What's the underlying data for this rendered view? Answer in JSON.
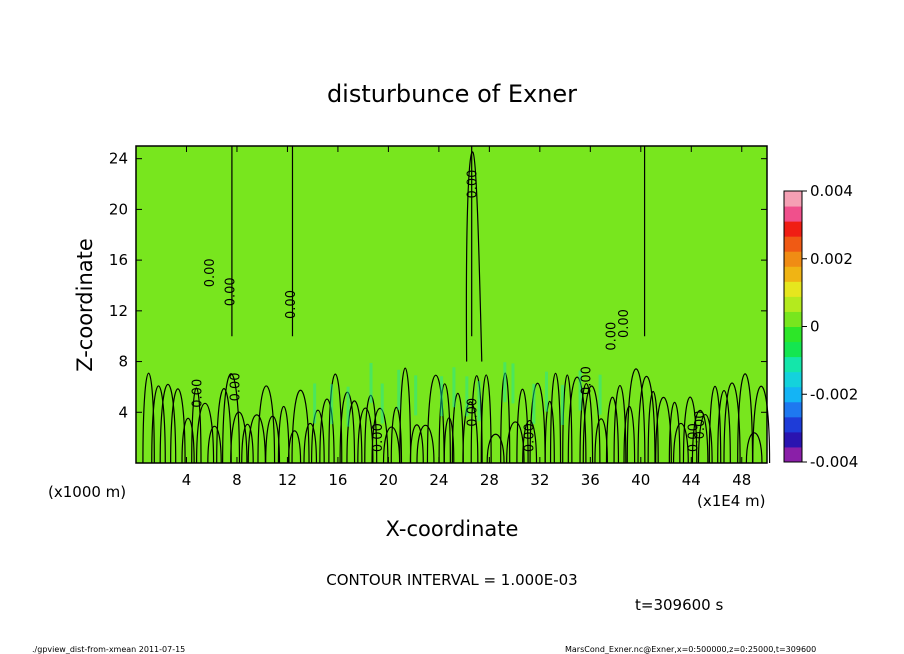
{
  "chart_data": {
    "type": "heatmap",
    "title": "disturbunce of Exner",
    "xlabel": "X-coordinate",
    "ylabel": "Z-coordinate",
    "x_unit_label": "(x1E4 m)",
    "y_unit_label": "(x1000 m)",
    "xlim": [
      0,
      50
    ],
    "ylim": [
      0,
      25
    ],
    "x_ticks": [
      "4",
      "8",
      "12",
      "16",
      "20",
      "24",
      "28",
      "32",
      "36",
      "40",
      "44",
      "48"
    ],
    "x_tick_values": [
      4,
      8,
      12,
      16,
      20,
      24,
      28,
      32,
      36,
      40,
      44,
      48
    ],
    "y_ticks": [
      "4",
      "8",
      "12",
      "16",
      "20",
      "24"
    ],
    "y_tick_values": [
      4,
      8,
      12,
      16,
      20,
      24
    ],
    "colorbar": {
      "min": -0.004,
      "max": 0.004,
      "tick_labels": [
        "0.004",
        "0.002",
        "0",
        "-0.002",
        "-0.004"
      ],
      "tick_values": [
        0.004,
        0.002,
        0,
        -0.002,
        -0.004
      ],
      "colors": [
        "#8a1fa8",
        "#2a14b0",
        "#1e3cd8",
        "#1e78f0",
        "#14b4f5",
        "#14d2dc",
        "#14e6aa",
        "#14e650",
        "#2de628",
        "#78e61e",
        "#b4ea1e",
        "#e6e61e",
        "#f0b414",
        "#f08c14",
        "#f05a14",
        "#f01e14",
        "#f0508c",
        "#f5a0b4"
      ]
    },
    "background_value": 0.0,
    "contour_label": "0.00",
    "contour_interval_text": "CONTOUR INTERVAL = 1.000E-03",
    "time_text": "t=309600 s",
    "contour_lines_x": [
      7.6,
      12.4,
      26.6,
      40.3
    ],
    "contour_label_positions": [
      {
        "x": 6.2,
        "z": 15.0
      },
      {
        "x": 7.8,
        "z": 13.5
      },
      {
        "x": 12.6,
        "z": 12.5
      },
      {
        "x": 27.0,
        "z": 22.0
      },
      {
        "x": 5.2,
        "z": 5.5
      },
      {
        "x": 8.2,
        "z": 6.0
      },
      {
        "x": 19.5,
        "z": 2.0
      },
      {
        "x": 27.0,
        "z": 4.0
      },
      {
        "x": 31.5,
        "z": 2.0
      },
      {
        "x": 36.0,
        "z": 6.5
      },
      {
        "x": 38.0,
        "z": 10.0
      },
      {
        "x": 39.0,
        "z": 11.0
      },
      {
        "x": 44.5,
        "z": 2.0
      },
      {
        "x": 45.0,
        "z": 3.0
      }
    ]
  },
  "footer": {
    "left": "./gpview_dist-from-xmean  2011-07-15",
    "right": "MarsCond_Exner.nc@Exner,x=0:500000,z=0:25000,t=309600"
  }
}
